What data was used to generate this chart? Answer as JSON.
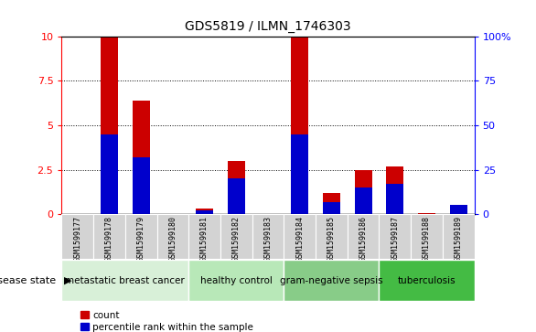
{
  "title": "GDS5819 / ILMN_1746303",
  "samples": [
    "GSM1599177",
    "GSM1599178",
    "GSM1599179",
    "GSM1599180",
    "GSM1599181",
    "GSM1599182",
    "GSM1599183",
    "GSM1599184",
    "GSM1599185",
    "GSM1599186",
    "GSM1599187",
    "GSM1599188",
    "GSM1599189"
  ],
  "count": [
    0.0,
    10.0,
    6.4,
    0.0,
    0.3,
    3.0,
    0.0,
    10.0,
    1.2,
    2.5,
    2.7,
    0.05,
    0.0
  ],
  "percentile": [
    0.0,
    45.0,
    32.0,
    0.0,
    2.0,
    20.0,
    0.0,
    45.0,
    7.0,
    15.0,
    17.0,
    0.0,
    5.0
  ],
  "disease_groups": [
    {
      "label": "metastatic breast cancer",
      "start": 0,
      "end": 4,
      "color": "#d8f0d8"
    },
    {
      "label": "healthy control",
      "start": 4,
      "end": 7,
      "color": "#b8e8b8"
    },
    {
      "label": "gram-negative sepsis",
      "start": 7,
      "end": 10,
      "color": "#88cc88"
    },
    {
      "label": "tuberculosis",
      "start": 10,
      "end": 13,
      "color": "#44bb44"
    }
  ],
  "ylim_left": [
    0,
    10
  ],
  "ylim_right": [
    0,
    100
  ],
  "yticks_left": [
    0,
    2.5,
    5,
    7.5,
    10
  ],
  "yticks_right": [
    0,
    25,
    50,
    75,
    100
  ],
  "bar_color_count": "#cc0000",
  "bar_color_pct": "#0000cc",
  "bg_color_plot": "#ffffff",
  "bg_color_sample": "#d3d3d3",
  "disease_state_label": "disease state"
}
